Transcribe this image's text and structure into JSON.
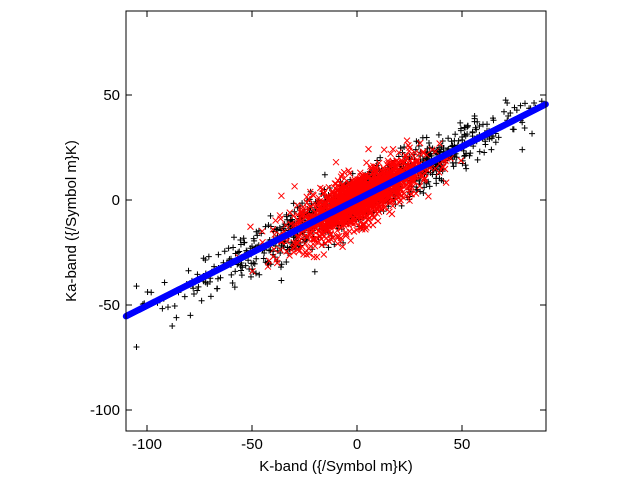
{
  "chart_data": {
    "type": "scatter",
    "title": "",
    "xlabel": "K-band ({/Symbol m}K)",
    "ylabel": "Ka-band ({/Symbol m}K)",
    "xlim": [
      -110,
      90
    ],
    "ylim": [
      -110,
      90
    ],
    "xticks": [
      -100,
      -50,
      0,
      50
    ],
    "yticks": [
      -100,
      -50,
      0,
      50
    ],
    "xtick_labels": [
      "-100",
      "-50",
      "0",
      "50"
    ],
    "ytick_labels": [
      "-100",
      "-50",
      "0",
      "50"
    ],
    "grid": false,
    "legend": "none",
    "series": [
      {
        "marker": "plus",
        "color": "#000000",
        "description_points": [
          [
            -105,
            -41
          ],
          [
            -98,
            -44
          ],
          [
            -95,
            -49
          ],
          [
            -92,
            -47
          ],
          [
            -90,
            -51
          ],
          [
            -88,
            -60
          ],
          [
            -85,
            -44
          ],
          [
            -82,
            -46
          ],
          [
            -80,
            -40
          ],
          [
            -78,
            -42
          ],
          [
            -75,
            -38
          ],
          [
            -72,
            -35
          ],
          [
            -70,
            -39
          ],
          [
            -68,
            -33
          ],
          [
            -65,
            -37
          ],
          [
            -62,
            -30
          ],
          [
            -60,
            -28
          ],
          [
            -58,
            -34
          ],
          [
            -55,
            -30
          ],
          [
            -52,
            -26
          ],
          [
            -50,
            -22
          ],
          [
            -48,
            -28
          ],
          [
            -45,
            -24
          ],
          [
            -42,
            -20
          ],
          [
            -40,
            -26
          ],
          [
            -38,
            -18
          ],
          [
            -35,
            -22
          ],
          [
            -32,
            -16
          ],
          [
            -30,
            -12
          ],
          [
            -28,
            -20
          ],
          [
            30,
            14
          ],
          [
            33,
            20
          ],
          [
            35,
            22
          ],
          [
            38,
            16
          ],
          [
            40,
            24
          ],
          [
            42,
            18
          ],
          [
            45,
            28
          ],
          [
            48,
            26
          ],
          [
            50,
            30
          ],
          [
            52,
            22
          ],
          [
            55,
            32
          ],
          [
            57,
            28
          ],
          [
            60,
            36
          ],
          [
            62,
            30
          ],
          [
            65,
            38
          ],
          [
            67,
            34
          ],
          [
            70,
            42
          ],
          [
            72,
            40
          ],
          [
            75,
            44
          ],
          [
            78,
            38
          ],
          [
            80,
            46
          ],
          [
            82,
            42
          ],
          [
            85,
            44
          ],
          [
            88,
            47
          ],
          [
            56,
            40
          ],
          [
            64,
            24
          ],
          [
            46,
            16
          ],
          [
            -86,
            -56
          ],
          [
            -74,
            -48
          ],
          [
            -66,
            -26
          ],
          [
            -105,
            -70
          ],
          [
            25,
            20
          ],
          [
            20,
            6
          ],
          [
            28,
            24
          ]
        ]
      },
      {
        "marker": "cross",
        "color": "#ff0000",
        "description_points": [
          [
            -40,
            -14
          ],
          [
            -36,
            -20
          ],
          [
            -34,
            -12
          ],
          [
            -30,
            -16
          ],
          [
            -28,
            -10
          ],
          [
            -26,
            -18
          ],
          [
            -24,
            -8
          ],
          [
            -22,
            -14
          ],
          [
            -20,
            -6
          ],
          [
            -18,
            -12
          ],
          [
            -16,
            -4
          ],
          [
            -14,
            -10
          ],
          [
            -12,
            -2
          ],
          [
            -10,
            -8
          ],
          [
            -8,
            0
          ],
          [
            -6,
            -6
          ],
          [
            -4,
            2
          ],
          [
            -2,
            -4
          ],
          [
            0,
            4
          ],
          [
            2,
            -2
          ],
          [
            4,
            6
          ],
          [
            6,
            0
          ],
          [
            8,
            8
          ],
          [
            10,
            2
          ],
          [
            12,
            10
          ],
          [
            14,
            4
          ],
          [
            16,
            12
          ],
          [
            18,
            6
          ],
          [
            20,
            14
          ],
          [
            22,
            8
          ],
          [
            24,
            16
          ],
          [
            26,
            10
          ],
          [
            28,
            18
          ],
          [
            30,
            12
          ],
          [
            34,
            16
          ],
          [
            -38,
            -30
          ],
          [
            -36,
            2
          ],
          [
            -10,
            18
          ],
          [
            4,
            -14
          ],
          [
            -20,
            -22
          ],
          [
            16,
            22
          ],
          [
            -32,
            -6
          ],
          [
            10,
            -10
          ],
          [
            -4,
            14
          ],
          [
            -24,
            -26
          ],
          [
            26,
            22
          ]
        ]
      },
      {
        "marker": "dot",
        "color": "#0000ff",
        "fit_line": {
          "slope": 0.505,
          "intercept": 0.2
        },
        "x_range": [
          -110,
          90
        ]
      }
    ]
  }
}
